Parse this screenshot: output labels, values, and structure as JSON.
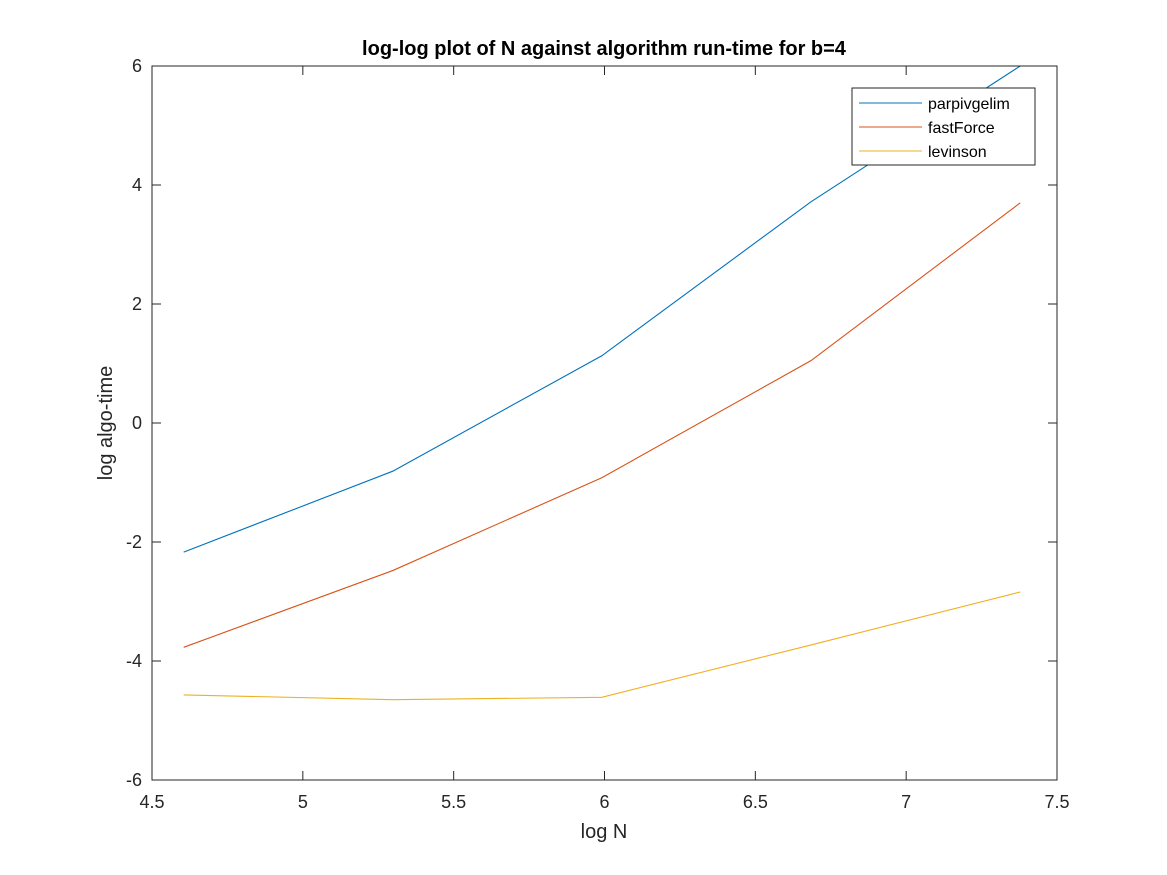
{
  "chart_data": {
    "type": "line",
    "title": "log-log plot of N against algorithm run-time for b=4",
    "xlabel": "log N",
    "ylabel": "log algo-time",
    "xlim": [
      4.5,
      7.5
    ],
    "ylim": [
      -6,
      6
    ],
    "xticks": [
      4.5,
      5,
      5.5,
      6,
      6.5,
      7,
      7.5
    ],
    "xtick_labels": [
      "4.5",
      "5",
      "5.5",
      "6",
      "6.5",
      "7",
      "7.5"
    ],
    "yticks": [
      -6,
      -4,
      -2,
      0,
      2,
      4,
      6
    ],
    "ytick_labels": [
      "-6",
      "-4",
      "-2",
      "0",
      "2",
      "4",
      "6"
    ],
    "grid": false,
    "legend_position": "top-right",
    "x": [
      4.605,
      5.298,
      5.991,
      6.685,
      7.378
    ],
    "series": [
      {
        "name": "parpivgelim",
        "color": "#0072BD",
        "values": [
          -2.17,
          -0.81,
          1.13,
          3.72,
          6.0
        ]
      },
      {
        "name": "fastForce",
        "color": "#D95319",
        "values": [
          -3.77,
          -2.48,
          -0.92,
          1.05,
          3.7
        ]
      },
      {
        "name": "levinson",
        "color": "#EDB120",
        "values": [
          -4.57,
          -4.65,
          -4.61,
          -3.73,
          -2.84
        ]
      }
    ]
  }
}
